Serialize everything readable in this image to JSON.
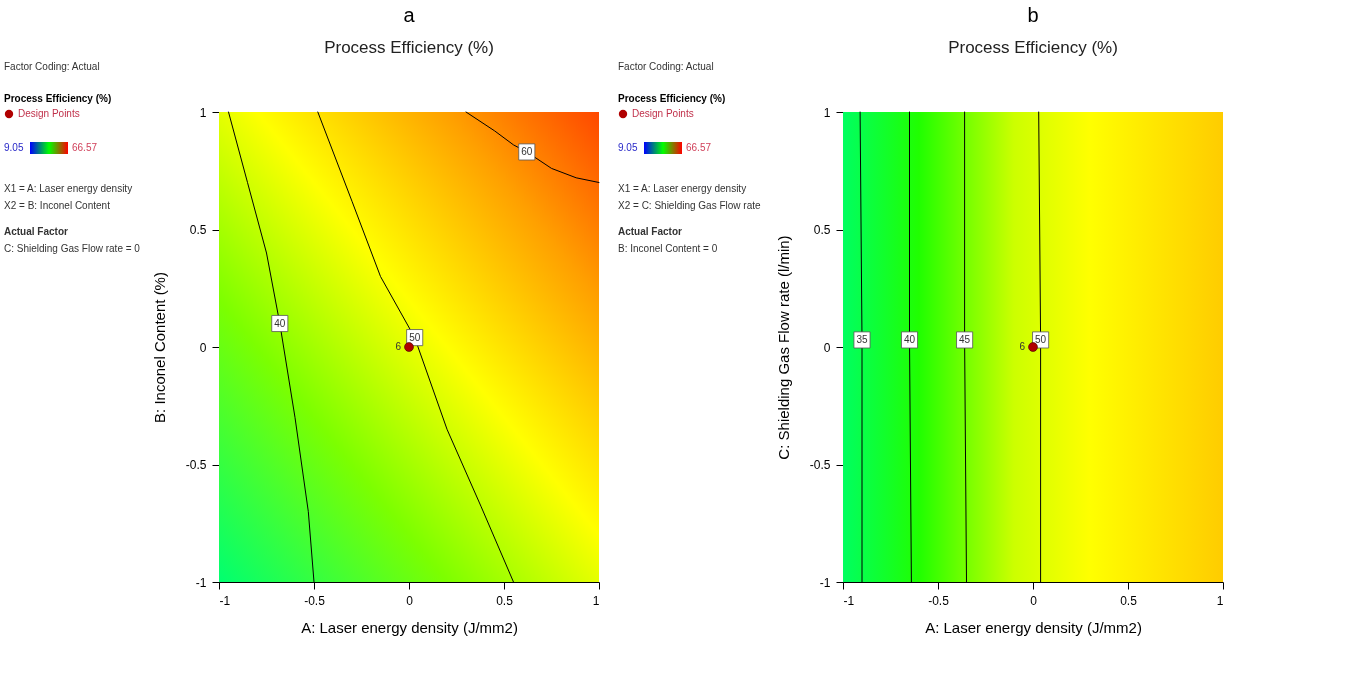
{
  "chart_data": [
    {
      "type": "line",
      "title": "a",
      "subtitle": "Process Efficiency (%)",
      "xlabel": "A: Laser energy density (J/mm2)",
      "ylabel": "B: Inconel Content (%)",
      "xlim": [
        -1,
        1
      ],
      "ylim": [
        -1,
        1
      ],
      "xticks": [
        -1,
        -0.5,
        0,
        0.5,
        1
      ],
      "yticks": [
        -1,
        -0.5,
        0,
        0.5,
        1
      ],
      "legend": "left",
      "legend_title": "Process Efficiency (%)",
      "series": [
        {
          "name": "40",
          "type": "line",
          "color": "#000000",
          "x": [
            -0.95,
            -0.85,
            -0.75,
            -0.68,
            -0.6,
            -0.53,
            -0.5
          ],
          "values": [
            1,
            0.7,
            0.4,
            0.1,
            -0.3,
            -0.7,
            -1
          ]
        },
        {
          "name": "50",
          "type": "line",
          "color": "#000000",
          "x": [
            -0.48,
            -0.3,
            -0.15,
            0.03,
            0.2,
            0.38,
            0.55
          ],
          "values": [
            1,
            0.62,
            0.3,
            0.04,
            -0.35,
            -0.68,
            -1
          ]
        },
        {
          "name": "60",
          "type": "line",
          "color": "#000000",
          "x": [
            0.3,
            0.45,
            0.55,
            0.62,
            0.75,
            0.88,
            1
          ],
          "values": [
            1,
            0.92,
            0.86,
            0.83,
            0.76,
            0.72,
            0.7
          ]
        },
        {
          "name": "Design Points",
          "type": "scatter",
          "color": "#b00000",
          "x": [
            0
          ],
          "values": [
            0
          ]
        }
      ],
      "annotations": [
        "Factor Coding: Actual",
        "9.05",
        "66.57",
        "X1 = A: Laser energy density",
        "X2 = B: Inconel Content",
        "Actual Factor",
        "C: Shielding Gas Flow rate = 0",
        {
          "text": "6",
          "x": 0,
          "y": 0
        }
      ]
    },
    {
      "type": "line",
      "title": "b",
      "subtitle": "Process Efficiency (%)",
      "xlabel": "A: Laser energy density (J/mm2)",
      "ylabel": "C: Shielding Gas Flow rate (l/min)",
      "xlim": [
        -1,
        1
      ],
      "ylim": [
        -1,
        1
      ],
      "xticks": [
        -1,
        -0.5,
        0,
        0.5,
        1
      ],
      "yticks": [
        -1,
        -0.5,
        0,
        0.5,
        1
      ],
      "legend": "left",
      "legend_title": "Process Efficiency (%)",
      "series": [
        {
          "name": "35",
          "type": "line",
          "color": "#000000",
          "x": [
            -0.91,
            -0.9,
            -0.9
          ],
          "values": [
            1,
            0.03,
            -1
          ]
        },
        {
          "name": "40",
          "type": "line",
          "color": "#000000",
          "x": [
            -0.65,
            -0.65,
            -0.64
          ],
          "values": [
            1,
            0.03,
            -1
          ]
        },
        {
          "name": "45",
          "type": "line",
          "color": "#000000",
          "x": [
            -0.36,
            -0.36,
            -0.35
          ],
          "values": [
            1,
            0.03,
            -1
          ]
        },
        {
          "name": "50",
          "type": "line",
          "color": "#000000",
          "x": [
            0.03,
            0.04,
            0.04
          ],
          "values": [
            1,
            0.03,
            -1
          ]
        },
        {
          "name": "Design Points",
          "type": "scatter",
          "color": "#b00000",
          "x": [
            0
          ],
          "values": [
            0
          ]
        }
      ],
      "annotations": [
        "Factor Coding: Actual",
        "9.05",
        "66.57",
        "X1 = A: Laser energy density",
        "X2 = C: Shielding Gas Flow rate",
        "Actual Factor",
        "B: Inconel Content = 0",
        {
          "text": "6",
          "x": 0,
          "y": 0
        }
      ]
    }
  ]
}
